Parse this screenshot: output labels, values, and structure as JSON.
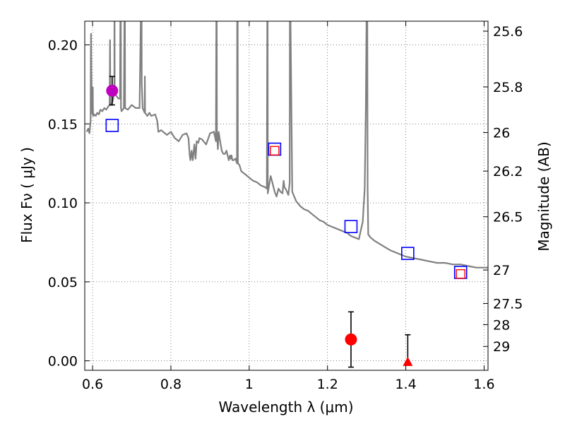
{
  "chart_data": {
    "type": "scatter",
    "xlabel_text": "Wavelength  λ (μm)",
    "ylabel_text": "Flux  Fν  ( μJy )",
    "ylabel_right": "Magnitude (AB)",
    "xlim": [
      0.58,
      1.61
    ],
    "ylim": [
      -0.006,
      0.215
    ],
    "x_ticks": [
      0.6,
      0.8,
      1.0,
      1.2,
      1.4,
      1.6
    ],
    "x_tick_labels": [
      "0.6",
      "0.8",
      "1",
      "1.2",
      "1.4",
      "1.6"
    ],
    "y_ticks": [
      0.0,
      0.05,
      0.1,
      0.15,
      0.2
    ],
    "y_tick_labels": [
      "0.00",
      "0.05",
      "0.10",
      "0.15",
      "0.20"
    ],
    "right_ticks": [
      {
        "flux": 0.2087,
        "label": "25.6"
      },
      {
        "flux": 0.1734,
        "label": "25.8"
      },
      {
        "flux": 0.1445,
        "label": "26"
      },
      {
        "flux": 0.1201,
        "label": "26.2"
      },
      {
        "flux": 0.0912,
        "label": "26.5"
      },
      {
        "flux": 0.0575,
        "label": "27"
      },
      {
        "flux": 0.0363,
        "label": "27.5"
      },
      {
        "flux": 0.0229,
        "label": "28"
      },
      {
        "flux": 0.0091,
        "label": "29"
      }
    ],
    "grid": true,
    "colors": {
      "model": "#808080",
      "photometry": "#bf00bf",
      "measured": "#ff0000",
      "synthetic": "#0000ff",
      "errorbar": "#000000"
    },
    "series": [
      {
        "name": "model_spectrum",
        "kind": "line",
        "x": [
          0.585,
          0.589,
          0.592,
          0.595,
          0.5955,
          0.596,
          0.597,
          0.598,
          0.6,
          0.6005,
          0.601,
          0.6015,
          0.604,
          0.608,
          0.612,
          0.616,
          0.62,
          0.625,
          0.63,
          0.635,
          0.64,
          0.6435,
          0.6445,
          0.6455,
          0.648,
          0.652,
          0.6555,
          0.656,
          0.6565,
          0.66,
          0.666,
          0.67,
          0.6715,
          0.672,
          0.6725,
          0.674,
          0.68,
          0.682,
          0.6825,
          0.683,
          0.69,
          0.7,
          0.71,
          0.72,
          0.7245,
          0.725,
          0.7255,
          0.728,
          0.733,
          0.7335,
          0.734,
          0.74,
          0.745,
          0.75,
          0.76,
          0.765,
          0.768,
          0.775,
          0.78,
          0.79,
          0.8,
          0.81,
          0.82,
          0.83,
          0.84,
          0.845,
          0.848,
          0.85,
          0.853,
          0.856,
          0.86,
          0.863,
          0.866,
          0.87,
          0.873,
          0.88,
          0.89,
          0.9,
          0.91,
          0.915,
          0.9165,
          0.917,
          0.9175,
          0.92,
          0.922,
          0.925,
          0.93,
          0.934,
          0.938,
          0.942,
          0.945,
          0.948,
          0.951,
          0.953,
          0.955,
          0.957,
          0.96,
          0.965,
          0.969,
          0.9695,
          0.9705,
          0.971,
          0.975,
          0.98,
          0.99,
          1.0,
          1.01,
          1.02,
          1.03,
          1.04,
          1.045,
          1.0465,
          1.047,
          1.0475,
          1.05,
          1.055,
          1.06,
          1.065,
          1.07,
          1.075,
          1.08,
          1.085,
          1.088,
          1.09,
          1.095,
          1.1,
          1.1035,
          1.104,
          1.1045,
          1.11,
          1.12,
          1.13,
          1.14,
          1.15,
          1.16,
          1.17,
          1.18,
          1.19,
          1.2,
          1.21,
          1.22,
          1.23,
          1.24,
          1.25,
          1.26,
          1.27,
          1.28,
          1.29,
          1.295,
          1.298,
          1.3005,
          1.3015,
          1.3025,
          1.304,
          1.31,
          1.32,
          1.34,
          1.36,
          1.38,
          1.4,
          1.42,
          1.44,
          1.46,
          1.48,
          1.5,
          1.52,
          1.54,
          1.56,
          1.58,
          1.6,
          1.61
        ],
        "y": [
          0.145,
          0.147,
          0.144,
          0.152,
          0.195,
          0.207,
          0.18,
          0.158,
          0.156,
          0.173,
          0.16,
          0.155,
          0.156,
          0.155,
          0.157,
          0.156,
          0.159,
          0.158,
          0.16,
          0.159,
          0.161,
          0.162,
          0.203,
          0.163,
          0.162,
          0.165,
          0.17,
          0.235,
          0.17,
          0.168,
          0.166,
          0.166,
          0.24,
          0.24,
          0.16,
          0.158,
          0.16,
          0.24,
          0.24,
          0.16,
          0.159,
          0.162,
          0.16,
          0.16,
          0.24,
          0.24,
          0.175,
          0.16,
          0.157,
          0.18,
          0.157,
          0.155,
          0.157,
          0.155,
          0.156,
          0.152,
          0.145,
          0.146,
          0.145,
          0.143,
          0.145,
          0.141,
          0.139,
          0.143,
          0.144,
          0.141,
          0.13,
          0.127,
          0.133,
          0.127,
          0.137,
          0.128,
          0.139,
          0.138,
          0.141,
          0.14,
          0.137,
          0.144,
          0.145,
          0.139,
          0.24,
          0.24,
          0.145,
          0.134,
          0.145,
          0.14,
          0.133,
          0.131,
          0.131,
          0.133,
          0.13,
          0.127,
          0.13,
          0.128,
          0.13,
          0.127,
          0.127,
          0.128,
          0.125,
          0.24,
          0.24,
          0.125,
          0.124,
          0.12,
          0.118,
          0.116,
          0.114,
          0.113,
          0.111,
          0.11,
          0.109,
          0.24,
          0.24,
          0.106,
          0.11,
          0.117,
          0.112,
          0.107,
          0.104,
          0.109,
          0.107,
          0.106,
          0.114,
          0.11,
          0.108,
          0.105,
          0.113,
          0.24,
          0.24,
          0.107,
          0.101,
          0.098,
          0.096,
          0.095,
          0.093,
          0.091,
          0.089,
          0.088,
          0.086,
          0.085,
          0.084,
          0.083,
          0.082,
          0.081,
          0.079,
          0.078,
          0.077,
          0.088,
          0.109,
          0.16,
          0.24,
          0.24,
          0.11,
          0.08,
          0.078,
          0.076,
          0.073,
          0.07,
          0.068,
          0.066,
          0.065,
          0.064,
          0.063,
          0.062,
          0.062,
          0.061,
          0.061,
          0.06,
          0.059,
          0.059,
          0.059
        ]
      },
      {
        "name": "synthetic_photometry",
        "kind": "open-square-blue",
        "x": [
          0.65,
          1.065,
          1.26,
          1.405,
          1.54
        ],
        "y": [
          0.149,
          0.134,
          0.085,
          0.068,
          0.056
        ]
      },
      {
        "name": "model_points",
        "kind": "open-square-red",
        "x": [
          1.065,
          1.54
        ],
        "y": [
          0.133,
          0.055
        ]
      },
      {
        "name": "photometry_detection",
        "kind": "filled-circle-magenta",
        "x": [
          0.65
        ],
        "y": [
          0.171
        ],
        "yerr": [
          0.009
        ]
      },
      {
        "name": "measured_detection",
        "kind": "filled-circle-red",
        "x": [
          1.26
        ],
        "y": [
          0.0135
        ],
        "yerr": [
          0.0175
        ]
      },
      {
        "name": "upper_limit",
        "kind": "filled-triangle-red",
        "x": [
          1.405
        ],
        "y": [
          -0.001
        ],
        "yerr_upper": [
          0.0175
        ]
      }
    ]
  }
}
